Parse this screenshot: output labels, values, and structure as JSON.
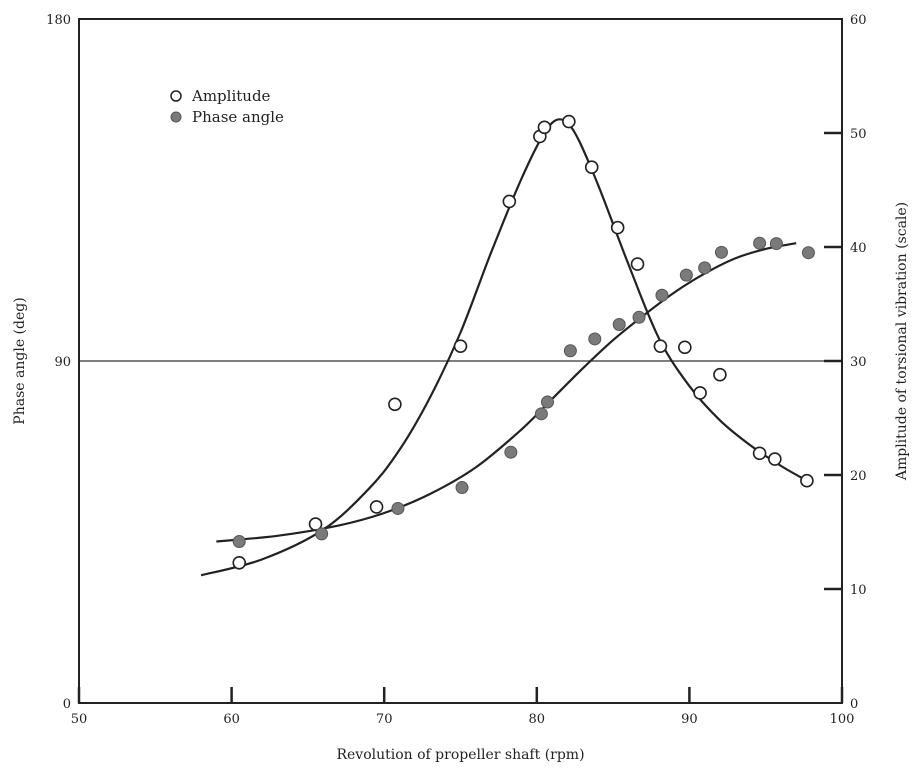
{
  "chart_data": {
    "type": "scatter",
    "xlabel": "Revolution of propeller shaft (rpm)",
    "ylabel_left": "Phase angle (deg)",
    "ylabel_right": "Amplitude of torsional vibration (scale)",
    "xlim": [
      50,
      100
    ],
    "ylim_left": [
      0,
      180
    ],
    "ylim_right": [
      0,
      60
    ],
    "x_ticks": [
      50,
      60,
      70,
      80,
      90,
      100
    ],
    "y_left_ticks": [
      0,
      90,
      180
    ],
    "y_right_ticks": [
      0,
      10,
      20,
      30,
      40,
      50,
      60
    ],
    "reference_line_left": 90,
    "legend": {
      "position": "top-left"
    },
    "series": [
      {
        "name": "Amplitude",
        "axis": "right",
        "marker": "open-circle",
        "points": [
          [
            60.5,
            12.3
          ],
          [
            65.5,
            15.7
          ],
          [
            69.5,
            17.2
          ],
          [
            70.7,
            26.2
          ],
          [
            75.0,
            31.3
          ],
          [
            78.2,
            44.0
          ],
          [
            80.2,
            49.7
          ],
          [
            80.5,
            50.5
          ],
          [
            82.1,
            51.0
          ],
          [
            83.6,
            47.0
          ],
          [
            85.3,
            41.7
          ],
          [
            86.6,
            38.5
          ],
          [
            88.1,
            31.3
          ],
          [
            89.7,
            31.2
          ],
          [
            90.7,
            27.2
          ],
          [
            92.0,
            28.8
          ],
          [
            94.6,
            21.9
          ],
          [
            95.6,
            21.4
          ],
          [
            97.7,
            19.5
          ]
        ],
        "fit": [
          [
            58.0,
            11.2
          ],
          [
            62.0,
            12.6
          ],
          [
            66.0,
            15.2
          ],
          [
            69.0,
            18.8
          ],
          [
            71.0,
            22.2
          ],
          [
            73.0,
            26.8
          ],
          [
            75.0,
            32.5
          ],
          [
            77.0,
            39.5
          ],
          [
            79.0,
            46.0
          ],
          [
            80.5,
            50.0
          ],
          [
            81.5,
            51.2
          ],
          [
            82.5,
            50.0
          ],
          [
            84.0,
            45.5
          ],
          [
            86.0,
            38.5
          ],
          [
            88.0,
            32.0
          ],
          [
            90.0,
            27.8
          ],
          [
            92.0,
            24.8
          ],
          [
            94.0,
            22.6
          ],
          [
            96.0,
            20.8
          ],
          [
            97.7,
            19.5
          ]
        ]
      },
      {
        "name": "Phase angle",
        "axis": "left",
        "marker": "filled-circle",
        "points": [
          [
            60.5,
            42.5
          ],
          [
            65.9,
            44.5
          ],
          [
            70.9,
            51.2
          ],
          [
            75.1,
            56.7
          ],
          [
            78.3,
            66.0
          ],
          [
            80.3,
            76.1
          ],
          [
            80.7,
            79.2
          ],
          [
            82.2,
            92.7
          ],
          [
            83.8,
            95.8
          ],
          [
            85.4,
            99.6
          ],
          [
            86.7,
            101.5
          ],
          [
            88.2,
            107.3
          ],
          [
            89.8,
            112.6
          ],
          [
            91.0,
            114.5
          ],
          [
            92.1,
            118.6
          ],
          [
            94.6,
            121.0
          ],
          [
            95.7,
            120.9
          ],
          [
            97.8,
            118.5
          ]
        ],
        "fit": [
          [
            59.0,
            42.5
          ],
          [
            63.0,
            44.0
          ],
          [
            67.0,
            46.7
          ],
          [
            70.0,
            50.0
          ],
          [
            73.0,
            55.0
          ],
          [
            76.0,
            62.0
          ],
          [
            79.0,
            72.0
          ],
          [
            81.0,
            80.0
          ],
          [
            83.0,
            88.0
          ],
          [
            85.0,
            95.5
          ],
          [
            87.0,
            102.0
          ],
          [
            89.0,
            108.0
          ],
          [
            91.0,
            113.0
          ],
          [
            93.0,
            117.0
          ],
          [
            95.0,
            119.5
          ],
          [
            97.0,
            121.0
          ]
        ]
      }
    ]
  }
}
